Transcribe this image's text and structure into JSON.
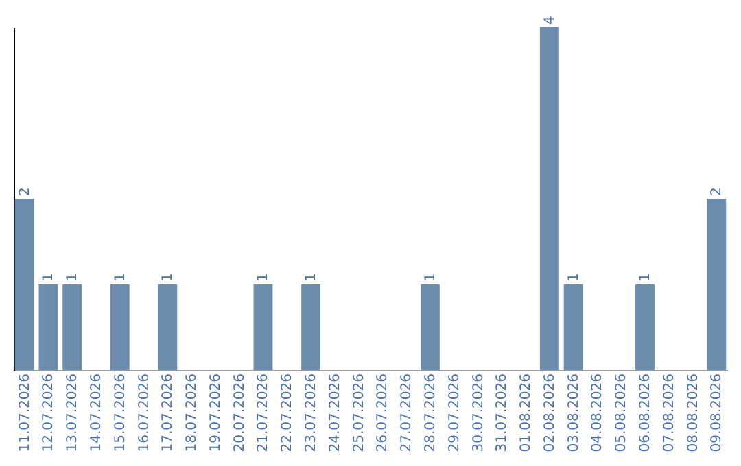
{
  "chart_data": {
    "type": "bar",
    "categories": [
      "11.07.2026",
      "12.07.2026",
      "13.07.2026",
      "14.07.2026",
      "15.07.2026",
      "16.07.2026",
      "17.07.2026",
      "18.07.2026",
      "19.07.2026",
      "20.07.2026",
      "21.07.2026",
      "22.07.2026",
      "23.07.2026",
      "24.07.2026",
      "25.07.2026",
      "26.07.2026",
      "27.07.2026",
      "28.07.2026",
      "29.07.2026",
      "30.07.2026",
      "31.07.2026",
      "01.08.2026",
      "02.08.2026",
      "03.08.2026",
      "04.08.2026",
      "05.08.2026",
      "06.08.2026",
      "07.08.2026",
      "08.08.2026",
      "09.08.2026"
    ],
    "values": [
      2,
      1,
      1,
      0,
      1,
      0,
      1,
      0,
      0,
      0,
      1,
      0,
      1,
      0,
      0,
      0,
      0,
      1,
      0,
      0,
      0,
      0,
      4,
      1,
      0,
      0,
      1,
      0,
      0,
      2
    ],
    "value_labels": [
      "2",
      "1",
      "1",
      null,
      "1",
      null,
      "1",
      null,
      null,
      null,
      "1",
      null,
      "1",
      null,
      null,
      null,
      null,
      "1",
      null,
      null,
      null,
      null,
      "4",
      "1",
      null,
      null,
      "1",
      null,
      null,
      "2"
    ],
    "color": "#6b8cad"
  }
}
